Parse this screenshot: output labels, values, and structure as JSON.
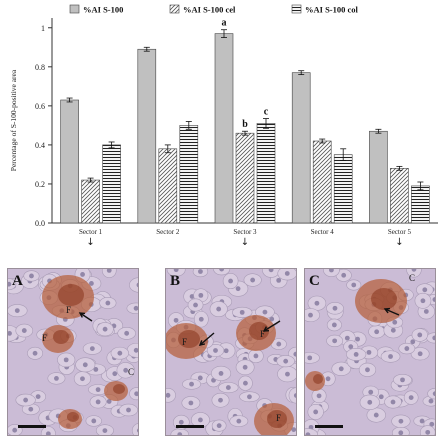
{
  "chart_data": {
    "type": "bar",
    "ylabel": "Percentage of S-100-positive area",
    "ylim": [
      0,
      1.05
    ],
    "yticks": [
      "0.0",
      "0.2",
      "0.4",
      "0.6",
      "0.8",
      "1"
    ],
    "categories": [
      "Sector 1",
      "Sector 2",
      "Sector 3",
      "Sector 4",
      "Sector 5"
    ],
    "category_markers": [
      "↓",
      "",
      "↓",
      "",
      "↓"
    ],
    "series": [
      {
        "name": "%AI S-100",
        "pattern": "solid-gray",
        "values": [
          0.63,
          0.89,
          0.97,
          0.77,
          0.47
        ],
        "errors": [
          0.01,
          0.01,
          0.02,
          0.01,
          0.01
        ],
        "annotations": [
          "",
          "",
          "a",
          "",
          ""
        ]
      },
      {
        "name": "%AI S-100 cel",
        "pattern": "diagonal-hatch",
        "values": [
          0.22,
          0.38,
          0.46,
          0.42,
          0.28
        ],
        "errors": [
          0.01,
          0.02,
          0.01,
          0.01,
          0.01
        ],
        "annotations": [
          "",
          "",
          "b",
          "",
          ""
        ]
      },
      {
        "name": "%AI S-100 col",
        "pattern": "horizontal-stripes",
        "values": [
          0.4,
          0.5,
          0.51,
          0.35,
          0.19
        ],
        "errors": [
          0.015,
          0.02,
          0.025,
          0.03,
          0.02
        ],
        "annotations": [
          "",
          "",
          "c",
          "",
          ""
        ]
      }
    ],
    "grid": false,
    "legend_position": "top"
  },
  "colors": {
    "bar_gray": "#c0c0c0",
    "bar_outline": "#444444",
    "axis": "#333333",
    "tissue_background": "#cbbcd6",
    "stain_brown": "#b5603a"
  },
  "panels": [
    {
      "letter": "A",
      "labels": [
        "F",
        "F",
        "C"
      ],
      "icons": [
        "arrow-icon",
        "scale-bar"
      ]
    },
    {
      "letter": "B",
      "labels": [
        "F",
        "F",
        "F"
      ],
      "icons": [
        "arrow-icon",
        "arrow-icon",
        "scale-bar"
      ]
    },
    {
      "letter": "C",
      "labels": [
        "C"
      ],
      "icons": [
        "arrow-icon",
        "scale-bar"
      ]
    }
  ]
}
